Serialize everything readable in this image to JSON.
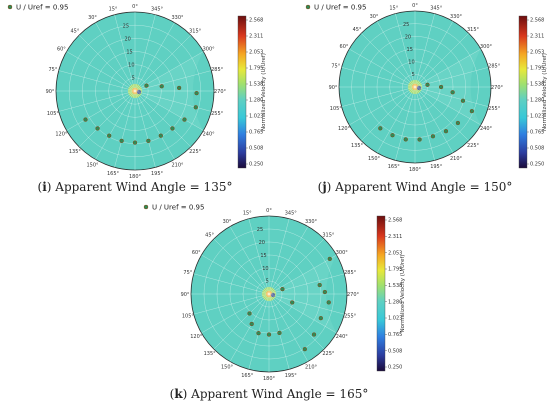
{
  "colors": {
    "field": "#5fd0c2",
    "marker": "#2e8b57",
    "marker_edge": "#8b4513",
    "grid": "#ffffff",
    "rim": "#2a2a2a"
  },
  "chart_data": [
    {
      "type": "scatter",
      "projection": "polar",
      "panel_letter": "i",
      "caption": "Apparent Wind Angle = 135°",
      "theta_zero": "top",
      "theta_direction": "counterclockwise",
      "theta_ticks": [
        "0°",
        "15°",
        "30°",
        "45°",
        "60°",
        "75°",
        "90°",
        "105°",
        "120°",
        "135°",
        "150°",
        "165°",
        "180°",
        "195°",
        "210°",
        "225°",
        "240°",
        "255°",
        "270°",
        "285°",
        "300°",
        "315°",
        "330°",
        "345°"
      ],
      "r_ticks": [
        "5",
        "10",
        "15",
        "20",
        "25"
      ],
      "rlim": [
        0,
        30
      ],
      "legend": {
        "label": "U / Uref = 0.95",
        "placement": "top-left"
      },
      "colorbar": {
        "label": "Normalized Velocity (U/Uref)",
        "ticks": [
          "2.568",
          "2.311",
          "2.053",
          "1.795",
          "1.538",
          "1.280",
          "1.023",
          "0.765",
          "0.508",
          "0.250"
        ],
        "range": [
          0.25,
          2.568
        ]
      },
      "series": [
        {
          "points": [
            {
              "theta": 295,
              "r": 4.8
            },
            {
              "theta": 280,
              "r": 10.3
            },
            {
              "theta": 274,
              "r": 16.8
            },
            {
              "theta": 268,
              "r": 23.4
            },
            {
              "theta": 255,
              "r": 23.9
            },
            {
              "theta": 240,
              "r": 21.7
            },
            {
              "theta": 225,
              "r": 20.1
            },
            {
              "theta": 210,
              "r": 19.6
            },
            {
              "theta": 195,
              "r": 19.6
            },
            {
              "theta": 180,
              "r": 19.6
            },
            {
              "theta": 165,
              "r": 19.6
            },
            {
              "theta": 150,
              "r": 19.6
            },
            {
              "theta": 135,
              "r": 20.1
            },
            {
              "theta": 120,
              "r": 21.7
            }
          ]
        }
      ]
    },
    {
      "type": "scatter",
      "projection": "polar",
      "panel_letter": "j",
      "caption": "Apparent Wind Angle = 150°",
      "theta_zero": "top",
      "theta_direction": "counterclockwise",
      "theta_ticks": [
        "0°",
        "15°",
        "30°",
        "45°",
        "60°",
        "75°",
        "90°",
        "105°",
        "120°",
        "135°",
        "150°",
        "165°",
        "180°",
        "195°",
        "210°",
        "225°",
        "240°",
        "255°",
        "270°",
        "285°",
        "300°",
        "315°",
        "330°",
        "345°"
      ],
      "r_ticks": [
        "5",
        "10",
        "15",
        "20",
        "25"
      ],
      "rlim": [
        0,
        30
      ],
      "legend": {
        "label": "U / Uref = 0.95",
        "placement": "top-left"
      },
      "colorbar": {
        "label": "Normalized Velocity (U/Uref)",
        "ticks": [
          "2.568",
          "2.311",
          "2.053",
          "1.795",
          "1.538",
          "1.280",
          "1.023",
          "0.765",
          "0.508",
          "0.250"
        ],
        "range": [
          0.25,
          2.568
        ]
      },
      "series": [
        {
          "points": [
            {
              "theta": 280,
              "r": 5.0
            },
            {
              "theta": 270,
              "r": 10.3
            },
            {
              "theta": 262,
              "r": 15.0
            },
            {
              "theta": 254,
              "r": 19.7
            },
            {
              "theta": 247,
              "r": 24.4
            },
            {
              "theta": 230,
              "r": 22.1
            },
            {
              "theta": 215,
              "r": 21.3
            },
            {
              "theta": 200,
              "r": 20.7
            },
            {
              "theta": 185,
              "r": 20.8
            },
            {
              "theta": 170,
              "r": 21.0
            },
            {
              "theta": 155,
              "r": 21.0
            },
            {
              "theta": 140,
              "r": 21.3
            }
          ]
        }
      ]
    },
    {
      "type": "scatter",
      "projection": "polar",
      "panel_letter": "k",
      "caption": "Apparent Wind Angle = 165°",
      "theta_zero": "top",
      "theta_direction": "counterclockwise",
      "theta_ticks": [
        "0°",
        "15°",
        "30°",
        "45°",
        "60°",
        "75°",
        "90°",
        "105°",
        "120°",
        "135°",
        "150°",
        "165°",
        "180°",
        "195°",
        "210°",
        "225°",
        "240°",
        "255°",
        "270°",
        "285°",
        "300°",
        "315°",
        "330°",
        "345°"
      ],
      "r_ticks": [
        "5",
        "10",
        "15",
        "20",
        "25"
      ],
      "rlim": [
        0,
        30
      ],
      "legend": {
        "label": "U / Uref = 0.95",
        "placement": "top-left"
      },
      "colorbar": {
        "label": "Normalized Velocity (U/Uref)",
        "ticks": [
          "2.568",
          "2.311",
          "2.053",
          "1.795",
          "1.538",
          "1.280",
          "1.023",
          "0.765",
          "0.508",
          "0.250"
        ],
        "range": [
          0.25,
          2.568
        ]
      },
      "series": [
        {
          "points": [
            {
              "theta": 300,
              "r": 27.0
            },
            {
              "theta": 290,
              "r": 5.5
            },
            {
              "theta": 280,
              "r": 19.8
            },
            {
              "theta": 272,
              "r": 21.5
            },
            {
              "theta": 262,
              "r": 23.2
            },
            {
              "theta": 250,
              "r": 9.5
            },
            {
              "theta": 245,
              "r": 22.0
            },
            {
              "theta": 228,
              "r": 23.3
            },
            {
              "theta": 213,
              "r": 25.3
            },
            {
              "theta": 195,
              "r": 15.5
            },
            {
              "theta": 180,
              "r": 15.6
            },
            {
              "theta": 165,
              "r": 15.6
            },
            {
              "theta": 150,
              "r": 13.3
            },
            {
              "theta": 135,
              "r": 10.6
            }
          ]
        }
      ]
    }
  ]
}
